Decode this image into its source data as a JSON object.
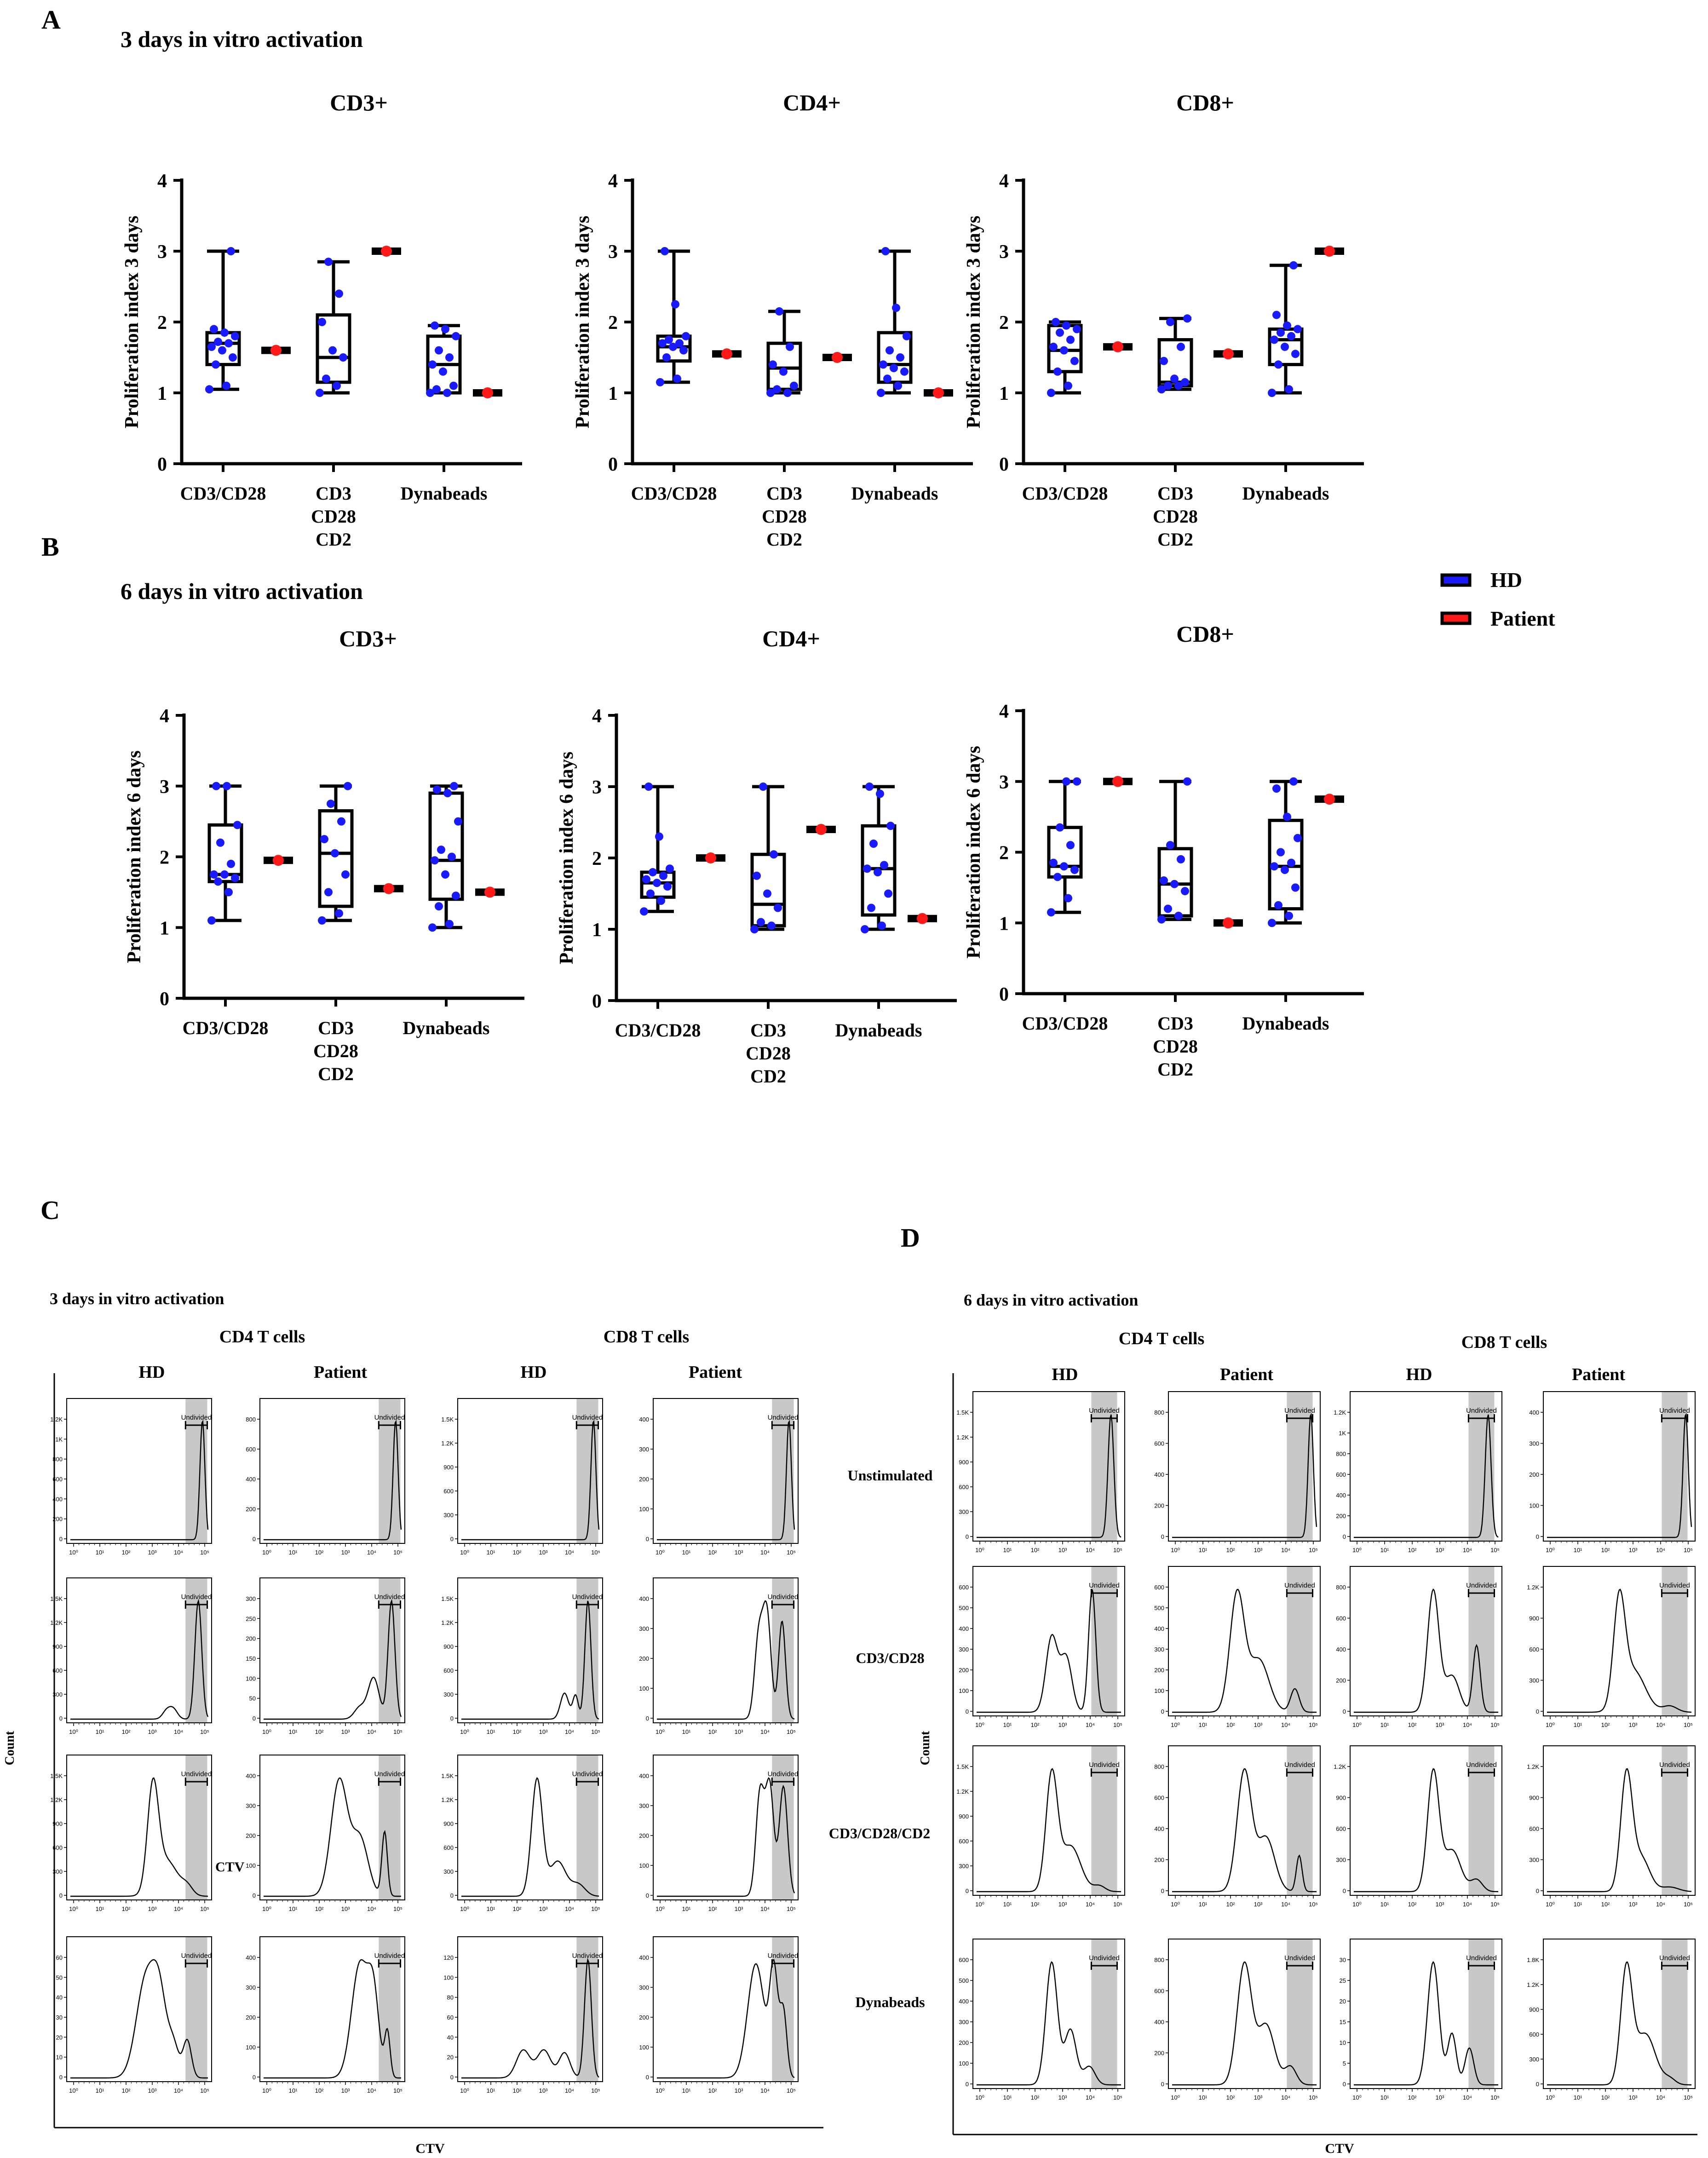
{
  "colors": {
    "hd": "#1a1aff",
    "patient": "#ff1a1a",
    "axis": "#000000",
    "gate": "#c8c8c8"
  },
  "panels": {
    "a": {
      "letter": "A",
      "title": "3 days in vitro activation"
    },
    "b": {
      "letter": "B",
      "title": "6 days in vitro activation"
    },
    "c": {
      "letter": "C",
      "title": "3 days in vitro activation",
      "cd4": "CD4 T cells",
      "cd8": "CD8 T cells",
      "y_label": "Count",
      "x_label": "CTV",
      "stray_label": "CTV"
    },
    "d": {
      "letter": "D",
      "title": "6 days in vitro activation",
      "cd4": "CD4 T cells",
      "cd8": "CD8 T cells",
      "y_label": "Count",
      "x_label": "CTV"
    }
  },
  "legend": {
    "hd": "HD",
    "patient": "Patient"
  },
  "flow": {
    "col_labels": [
      "HD",
      "Patient",
      "HD",
      "Patient"
    ],
    "row_labels": [
      "Unstimulated",
      "CD3/CD28",
      "CD3/CD28/CD2",
      "Dynabeads"
    ],
    "gate_label": "Undivided",
    "x_ticks": [
      "10⁰",
      "10¹",
      "10²",
      "10³",
      "10⁴",
      "10⁵"
    ]
  },
  "chart_data": [
    {
      "type": "box",
      "panel": "A",
      "title": "CD3+",
      "ylabel": "Proliferation index 3 days",
      "ylim": [
        0,
        4
      ],
      "yticks": [
        "0",
        "1",
        "2",
        "3",
        "4"
      ],
      "categories": [
        [
          "CD3/CD28"
        ],
        [
          "CD3",
          "CD28",
          "CD2"
        ],
        [
          "Dynabeads"
        ]
      ],
      "hd": [
        {
          "min": 1.05,
          "q1": 1.4,
          "median": 1.7,
          "q3": 1.85,
          "max": 3.0,
          "points": [
            1.05,
            1.1,
            1.4,
            1.5,
            1.6,
            1.65,
            1.7,
            1.72,
            1.8,
            1.85,
            1.9,
            3.0
          ]
        },
        {
          "min": 1.0,
          "q1": 1.15,
          "median": 1.5,
          "q3": 2.1,
          "max": 2.85,
          "points": [
            1.0,
            1.1,
            1.2,
            1.5,
            1.6,
            2.0,
            2.4,
            2.85
          ]
        },
        {
          "min": 1.0,
          "q1": 1.0,
          "median": 1.4,
          "q3": 1.8,
          "max": 1.95,
          "points": [
            1.0,
            1.0,
            1.05,
            1.1,
            1.3,
            1.4,
            1.5,
            1.6,
            1.8,
            1.9,
            1.95
          ]
        }
      ],
      "patient": [
        1.6,
        3.0,
        1.0
      ]
    },
    {
      "type": "box",
      "panel": "A",
      "title": "CD4+",
      "ylabel": "Proliferation index 3 days",
      "ylim": [
        0,
        4
      ],
      "yticks": [
        "0",
        "1",
        "2",
        "3",
        "4"
      ],
      "categories": [
        [
          "CD3/CD28"
        ],
        [
          "CD3",
          "CD28",
          "CD2"
        ],
        [
          "Dynabeads"
        ]
      ],
      "hd": [
        {
          "min": 1.15,
          "q1": 1.45,
          "median": 1.65,
          "q3": 1.8,
          "max": 3.0,
          "points": [
            1.15,
            1.2,
            1.5,
            1.6,
            1.65,
            1.7,
            1.7,
            1.75,
            1.8,
            2.25,
            3.0
          ]
        },
        {
          "min": 1.0,
          "q1": 1.05,
          "median": 1.35,
          "q3": 1.7,
          "max": 2.15,
          "points": [
            1.0,
            1.0,
            1.05,
            1.1,
            1.3,
            1.4,
            1.65,
            2.15
          ]
        },
        {
          "min": 1.0,
          "q1": 1.15,
          "median": 1.4,
          "q3": 1.85,
          "max": 3.0,
          "points": [
            1.0,
            1.1,
            1.2,
            1.3,
            1.35,
            1.4,
            1.5,
            1.6,
            1.8,
            2.2,
            3.0
          ]
        }
      ],
      "patient": [
        1.55,
        1.5,
        1.0
      ]
    },
    {
      "type": "box",
      "panel": "A",
      "title": "CD8+",
      "ylabel": "Proliferation index 3 days",
      "ylim": [
        0,
        4
      ],
      "yticks": [
        "0",
        "1",
        "2",
        "3",
        "4"
      ],
      "categories": [
        [
          "CD3/CD28"
        ],
        [
          "CD3",
          "CD28",
          "CD2"
        ],
        [
          "Dynabeads"
        ]
      ],
      "hd": [
        {
          "min": 1.0,
          "q1": 1.3,
          "median": 1.6,
          "q3": 1.95,
          "max": 2.0,
          "points": [
            1.0,
            1.1,
            1.3,
            1.45,
            1.6,
            1.65,
            1.75,
            1.85,
            1.9,
            1.95,
            2.0
          ]
        },
        {
          "min": 1.05,
          "q1": 1.1,
          "median": 1.15,
          "q3": 1.75,
          "max": 2.05,
          "points": [
            1.05,
            1.1,
            1.1,
            1.15,
            1.2,
            1.45,
            1.65,
            2.0,
            2.05
          ]
        },
        {
          "min": 1.0,
          "q1": 1.4,
          "median": 1.75,
          "q3": 1.9,
          "max": 2.8,
          "points": [
            1.0,
            1.05,
            1.4,
            1.55,
            1.65,
            1.75,
            1.8,
            1.85,
            1.9,
            1.95,
            2.1,
            2.8
          ]
        }
      ],
      "patient": [
        1.65,
        1.55,
        3.0
      ]
    },
    {
      "type": "box",
      "panel": "B",
      "title": "CD3+",
      "ylabel": "Proliferation index 6 days",
      "ylim": [
        0,
        4
      ],
      "yticks": [
        "0",
        "1",
        "2",
        "3",
        "4"
      ],
      "categories": [
        [
          "CD3/CD28"
        ],
        [
          "CD3",
          "CD28",
          "CD2"
        ],
        [
          "Dynabeads"
        ]
      ],
      "hd": [
        {
          "min": 1.1,
          "q1": 1.65,
          "median": 1.75,
          "q3": 2.45,
          "max": 3.0,
          "points": [
            1.1,
            1.5,
            1.65,
            1.7,
            1.75,
            1.75,
            1.9,
            2.2,
            2.45,
            3.0,
            3.0
          ]
        },
        {
          "min": 1.1,
          "q1": 1.3,
          "median": 2.05,
          "q3": 2.65,
          "max": 3.0,
          "points": [
            1.1,
            1.2,
            1.5,
            1.75,
            2.05,
            2.25,
            2.5,
            2.75,
            3.0
          ]
        },
        {
          "min": 1.0,
          "q1": 1.4,
          "median": 1.95,
          "q3": 2.9,
          "max": 3.0,
          "points": [
            1.0,
            1.05,
            1.3,
            1.45,
            1.75,
            1.95,
            2.0,
            2.1,
            2.5,
            2.9,
            2.95,
            3.0
          ]
        }
      ],
      "patient": [
        1.95,
        1.55,
        1.5
      ]
    },
    {
      "type": "box",
      "panel": "B",
      "title": "CD4+",
      "ylabel": "Proliferation index 6 days",
      "ylim": [
        0,
        4
      ],
      "yticks": [
        "0",
        "1",
        "2",
        "3",
        "4"
      ],
      "categories": [
        [
          "CD3/CD28"
        ],
        [
          "CD3",
          "CD28",
          "CD2"
        ],
        [
          "Dynabeads"
        ]
      ],
      "hd": [
        {
          "min": 1.25,
          "q1": 1.45,
          "median": 1.65,
          "q3": 1.8,
          "max": 3.0,
          "points": [
            1.25,
            1.4,
            1.5,
            1.6,
            1.65,
            1.7,
            1.75,
            1.8,
            1.85,
            2.3,
            3.0
          ]
        },
        {
          "min": 1.0,
          "q1": 1.05,
          "median": 1.35,
          "q3": 2.05,
          "max": 3.0,
          "points": [
            1.0,
            1.05,
            1.1,
            1.3,
            1.5,
            1.75,
            2.05,
            3.0
          ]
        },
        {
          "min": 1.0,
          "q1": 1.2,
          "median": 1.85,
          "q3": 2.45,
          "max": 3.0,
          "points": [
            1.0,
            1.05,
            1.3,
            1.5,
            1.8,
            1.85,
            1.9,
            2.2,
            2.45,
            2.9,
            3.0
          ]
        }
      ],
      "patient": [
        2.0,
        2.4,
        1.15
      ]
    },
    {
      "type": "box",
      "panel": "B",
      "title": "CD8+",
      "ylabel": "Proliferation index 6 days",
      "ylim": [
        0,
        4
      ],
      "yticks": [
        "0",
        "1",
        "2",
        "3",
        "4"
      ],
      "categories": [
        [
          "CD3/CD28"
        ],
        [
          "CD3",
          "CD28",
          "CD2"
        ],
        [
          "Dynabeads"
        ]
      ],
      "hd": [
        {
          "min": 1.15,
          "q1": 1.65,
          "median": 1.8,
          "q3": 2.35,
          "max": 3.0,
          "points": [
            1.15,
            1.35,
            1.65,
            1.75,
            1.8,
            1.85,
            2.1,
            2.35,
            3.0,
            3.0
          ]
        },
        {
          "min": 1.05,
          "q1": 1.1,
          "median": 1.55,
          "q3": 2.05,
          "max": 3.0,
          "points": [
            1.05,
            1.1,
            1.2,
            1.45,
            1.55,
            1.6,
            1.9,
            2.1,
            3.0
          ]
        },
        {
          "min": 1.0,
          "q1": 1.2,
          "median": 1.8,
          "q3": 2.45,
          "max": 3.0,
          "points": [
            1.0,
            1.1,
            1.25,
            1.5,
            1.75,
            1.8,
            1.85,
            2.0,
            2.2,
            2.5,
            2.9,
            3.0
          ]
        }
      ],
      "patient": [
        3.0,
        1.0,
        2.75
      ]
    }
  ],
  "flow_panels": {
    "c": [
      [
        "1.2K,1K,800,600,400,200,0",
        "800,600,400,200,0",
        "1.5K,1.2K,900,600,300,0",
        "400,300,200,100,0"
      ],
      [
        "1.5K,1.2K,900,600,300,0",
        "300,250,200,150,100,50,0",
        "1.5K,1.2K,900,600,300,0",
        "400,300,200,100,0"
      ],
      [
        "1.5K,1.2K,900,600,300,0",
        "400,300,200,100,0",
        "1.5K,1.2K,900,600,300,0",
        "400,300,200,100,0"
      ],
      [
        "60,50,40,30,20,10,0",
        "400,300,200,100,0",
        "120,100,80,60,40,20,0",
        "400,300,200,100,0"
      ]
    ],
    "d": [
      [
        "1.5K,1.2K,900,600,300,0",
        "800,600,400,200,0",
        "1.2K,1K,800,600,400,200,0",
        "400,300,200,100,0"
      ],
      [
        "600,500,400,300,200,100,0",
        "600,500,400,300,200,100,0",
        "800,600,400,200,0",
        "1.2K,900,600,300,0"
      ],
      [
        "1.5K,1.2K,900,600,300,0",
        "800,600,400,200,0",
        "1.2K,900,600,300,0",
        "1.2K,900,600,300,0"
      ],
      [
        "600,500,400,300,200,100,0",
        "800,600,400,200,0",
        "30,25,20,15,10,5,0",
        "1.8K,1.2K,900,600,300,0"
      ]
    ]
  }
}
